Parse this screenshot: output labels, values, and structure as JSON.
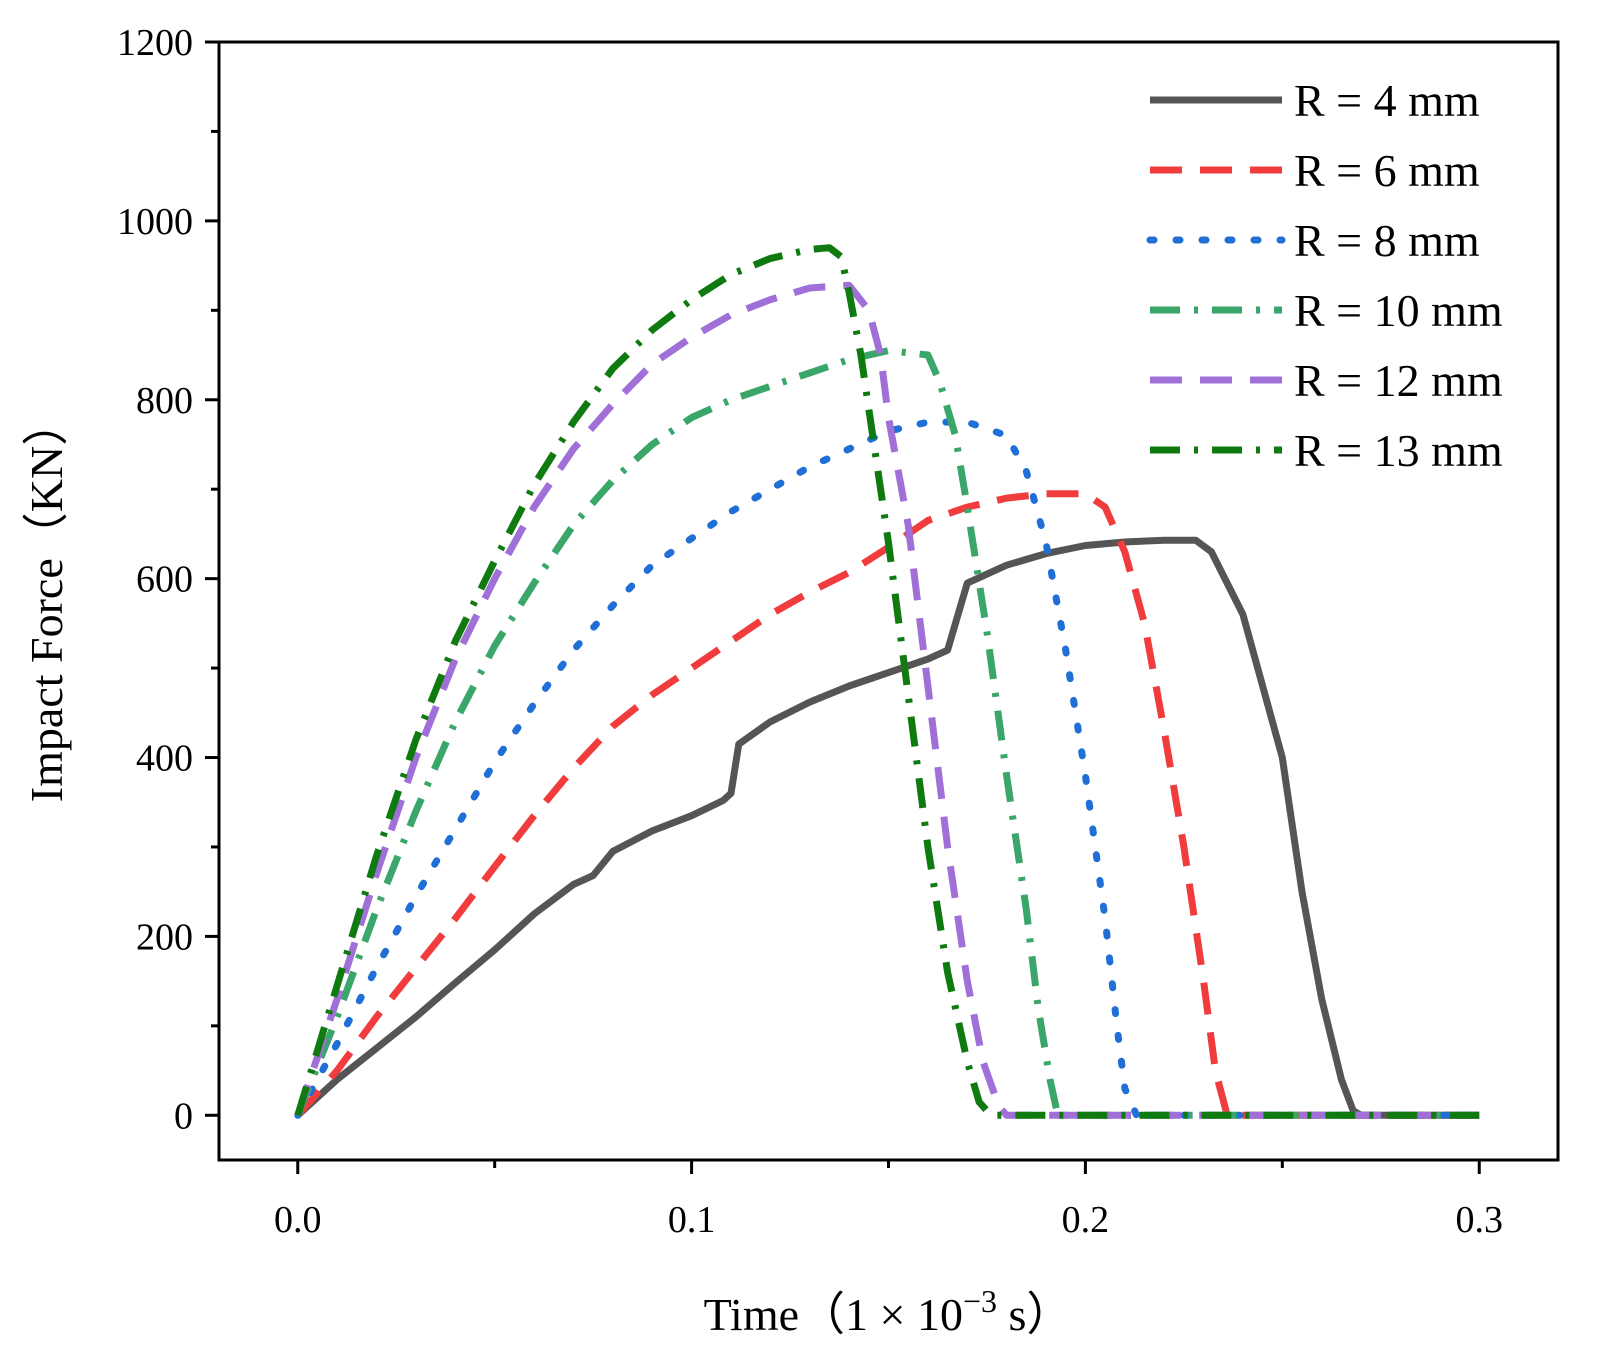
{
  "chart_data": {
    "type": "line",
    "title": "",
    "xlabel": "Time（1 × 10",
    "xlabel_exp": "−3",
    "xlabel_unit": " s）",
    "ylabel": "Impact Force（KN）",
    "xlim": [
      -0.02,
      0.32
    ],
    "ylim": [
      -50,
      1200
    ],
    "x_ticks": [
      0.0,
      0.1,
      0.2,
      0.3
    ],
    "x_tick_labels": [
      "0.0",
      "0.1",
      "0.2",
      "0.3"
    ],
    "y_ticks": [
      0,
      200,
      400,
      600,
      800,
      1000,
      1200
    ],
    "y_tick_labels": [
      "0",
      "200",
      "400",
      "600",
      "800",
      "1000",
      "1200"
    ],
    "grid": false,
    "legend_position": "top-right",
    "series": [
      {
        "name": "R = 4 mm",
        "color": "#555555",
        "style": "solid",
        "points": [
          [
            0,
            0
          ],
          [
            0.01,
            40
          ],
          [
            0.02,
            75
          ],
          [
            0.03,
            110
          ],
          [
            0.04,
            148
          ],
          [
            0.05,
            185
          ],
          [
            0.06,
            225
          ],
          [
            0.07,
            258
          ],
          [
            0.075,
            268
          ],
          [
            0.08,
            295
          ],
          [
            0.09,
            318
          ],
          [
            0.1,
            335
          ],
          [
            0.108,
            352
          ],
          [
            0.11,
            360
          ],
          [
            0.112,
            415
          ],
          [
            0.12,
            440
          ],
          [
            0.13,
            462
          ],
          [
            0.14,
            480
          ],
          [
            0.15,
            495
          ],
          [
            0.16,
            510
          ],
          [
            0.165,
            520
          ],
          [
            0.168,
            565
          ],
          [
            0.17,
            595
          ],
          [
            0.18,
            615
          ],
          [
            0.19,
            628
          ],
          [
            0.2,
            637
          ],
          [
            0.21,
            641
          ],
          [
            0.22,
            643
          ],
          [
            0.228,
            643
          ],
          [
            0.232,
            630
          ],
          [
            0.24,
            560
          ],
          [
            0.25,
            400
          ],
          [
            0.255,
            250
          ],
          [
            0.26,
            130
          ],
          [
            0.265,
            40
          ],
          [
            0.268,
            5
          ],
          [
            0.27,
            0
          ],
          [
            0.3,
            0
          ]
        ]
      },
      {
        "name": "R = 6 mm",
        "color": "#f03c3c",
        "style": "dashed",
        "points": [
          [
            0,
            0
          ],
          [
            0.01,
            50
          ],
          [
            0.02,
            110
          ],
          [
            0.03,
            165
          ],
          [
            0.04,
            220
          ],
          [
            0.05,
            278
          ],
          [
            0.06,
            335
          ],
          [
            0.07,
            388
          ],
          [
            0.08,
            435
          ],
          [
            0.09,
            470
          ],
          [
            0.1,
            500
          ],
          [
            0.11,
            530
          ],
          [
            0.12,
            560
          ],
          [
            0.13,
            585
          ],
          [
            0.14,
            607
          ],
          [
            0.15,
            635
          ],
          [
            0.16,
            665
          ],
          [
            0.17,
            680
          ],
          [
            0.18,
            690
          ],
          [
            0.19,
            695
          ],
          [
            0.2,
            695
          ],
          [
            0.205,
            680
          ],
          [
            0.21,
            630
          ],
          [
            0.215,
            550
          ],
          [
            0.22,
            430
          ],
          [
            0.225,
            300
          ],
          [
            0.23,
            150
          ],
          [
            0.233,
            50
          ],
          [
            0.236,
            0
          ],
          [
            0.3,
            0
          ]
        ]
      },
      {
        "name": "R = 8 mm",
        "color": "#1f6fd6",
        "style": "dotted",
        "points": [
          [
            0,
            0
          ],
          [
            0.01,
            80
          ],
          [
            0.02,
            165
          ],
          [
            0.03,
            245
          ],
          [
            0.04,
            320
          ],
          [
            0.05,
            395
          ],
          [
            0.06,
            460
          ],
          [
            0.07,
            520
          ],
          [
            0.08,
            570
          ],
          [
            0.09,
            615
          ],
          [
            0.1,
            645
          ],
          [
            0.11,
            675
          ],
          [
            0.12,
            700
          ],
          [
            0.13,
            725
          ],
          [
            0.14,
            745
          ],
          [
            0.15,
            765
          ],
          [
            0.16,
            775
          ],
          [
            0.17,
            775
          ],
          [
            0.18,
            760
          ],
          [
            0.185,
            720
          ],
          [
            0.19,
            640
          ],
          [
            0.195,
            520
          ],
          [
            0.2,
            380
          ],
          [
            0.205,
            220
          ],
          [
            0.208,
            100
          ],
          [
            0.21,
            30
          ],
          [
            0.213,
            0
          ],
          [
            0.3,
            0
          ]
        ]
      },
      {
        "name": "R = 10 mm",
        "color": "#3aa66a",
        "style": "dashdot",
        "points": [
          [
            0,
            0
          ],
          [
            0.01,
            110
          ],
          [
            0.02,
            230
          ],
          [
            0.03,
            340
          ],
          [
            0.04,
            440
          ],
          [
            0.05,
            525
          ],
          [
            0.06,
            595
          ],
          [
            0.07,
            660
          ],
          [
            0.08,
            710
          ],
          [
            0.09,
            750
          ],
          [
            0.1,
            780
          ],
          [
            0.11,
            800
          ],
          [
            0.12,
            815
          ],
          [
            0.13,
            830
          ],
          [
            0.14,
            845
          ],
          [
            0.15,
            855
          ],
          [
            0.16,
            850
          ],
          [
            0.163,
            820
          ],
          [
            0.167,
            760
          ],
          [
            0.17,
            680
          ],
          [
            0.175,
            540
          ],
          [
            0.18,
            380
          ],
          [
            0.185,
            230
          ],
          [
            0.188,
            120
          ],
          [
            0.191,
            40
          ],
          [
            0.193,
            0
          ],
          [
            0.3,
            0
          ]
        ]
      },
      {
        "name": "R = 12 mm",
        "color": "#a070d8",
        "style": "dashed",
        "points": [
          [
            0,
            0
          ],
          [
            0.01,
            130
          ],
          [
            0.02,
            270
          ],
          [
            0.03,
            400
          ],
          [
            0.04,
            510
          ],
          [
            0.05,
            600
          ],
          [
            0.06,
            680
          ],
          [
            0.07,
            745
          ],
          [
            0.08,
            795
          ],
          [
            0.09,
            840
          ],
          [
            0.1,
            870
          ],
          [
            0.11,
            895
          ],
          [
            0.12,
            912
          ],
          [
            0.13,
            925
          ],
          [
            0.14,
            928
          ],
          [
            0.145,
            900
          ],
          [
            0.148,
            850
          ],
          [
            0.15,
            780
          ],
          [
            0.155,
            660
          ],
          [
            0.16,
            480
          ],
          [
            0.165,
            300
          ],
          [
            0.17,
            150
          ],
          [
            0.174,
            60
          ],
          [
            0.178,
            10
          ],
          [
            0.18,
            0
          ],
          [
            0.3,
            0
          ]
        ]
      },
      {
        "name": "R = 13 mm",
        "color": "#0f7a0f",
        "style": "dashdot",
        "points": [
          [
            0,
            0
          ],
          [
            0.01,
            145
          ],
          [
            0.02,
            290
          ],
          [
            0.03,
            420
          ],
          [
            0.04,
            530
          ],
          [
            0.05,
            620
          ],
          [
            0.06,
            705
          ],
          [
            0.07,
            775
          ],
          [
            0.08,
            835
          ],
          [
            0.09,
            878
          ],
          [
            0.1,
            912
          ],
          [
            0.11,
            940
          ],
          [
            0.12,
            958
          ],
          [
            0.13,
            968
          ],
          [
            0.135,
            970
          ],
          [
            0.138,
            960
          ],
          [
            0.14,
            920
          ],
          [
            0.143,
            850
          ],
          [
            0.146,
            760
          ],
          [
            0.15,
            640
          ],
          [
            0.155,
            470
          ],
          [
            0.16,
            300
          ],
          [
            0.165,
            160
          ],
          [
            0.17,
            60
          ],
          [
            0.173,
            15
          ],
          [
            0.176,
            0
          ],
          [
            0.3,
            0
          ]
        ]
      }
    ]
  }
}
